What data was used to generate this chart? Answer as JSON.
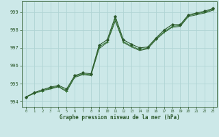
{
  "title": "Graphe pression niveau de la mer (hPa)",
  "background_color": "#cce8e8",
  "grid_color": "#b0d4d4",
  "line_color_dark": "#2d5a2d",
  "line_color_mid": "#3a7a3a",
  "xlim": [
    -0.5,
    23.5
  ],
  "ylim": [
    993.7,
    999.6
  ],
  "yticks": [
    994,
    995,
    996,
    997,
    998,
    999
  ],
  "xticks": [
    0,
    1,
    2,
    3,
    4,
    5,
    6,
    7,
    8,
    9,
    10,
    11,
    12,
    13,
    14,
    15,
    16,
    17,
    18,
    19,
    20,
    21,
    22,
    23
  ],
  "series1": [
    994.25,
    994.5,
    994.65,
    994.8,
    994.9,
    994.7,
    995.45,
    995.6,
    995.55,
    997.15,
    997.45,
    998.75,
    997.45,
    997.2,
    997.0,
    997.05,
    997.55,
    998.0,
    998.3,
    998.3,
    998.85,
    998.95,
    999.05,
    999.2
  ],
  "series2": [
    994.25,
    994.45,
    994.6,
    994.75,
    994.85,
    994.6,
    995.4,
    995.55,
    995.5,
    997.05,
    997.35,
    998.6,
    997.35,
    997.1,
    996.9,
    997.0,
    997.5,
    997.9,
    998.2,
    998.25,
    998.8,
    998.9,
    999.0,
    999.15
  ],
  "series3": [
    994.25,
    994.45,
    994.6,
    994.7,
    994.82,
    994.55,
    995.35,
    995.5,
    995.45,
    996.95,
    997.3,
    998.5,
    997.3,
    997.05,
    996.85,
    996.95,
    997.45,
    997.85,
    998.15,
    998.2,
    998.75,
    998.85,
    998.95,
    999.1
  ]
}
